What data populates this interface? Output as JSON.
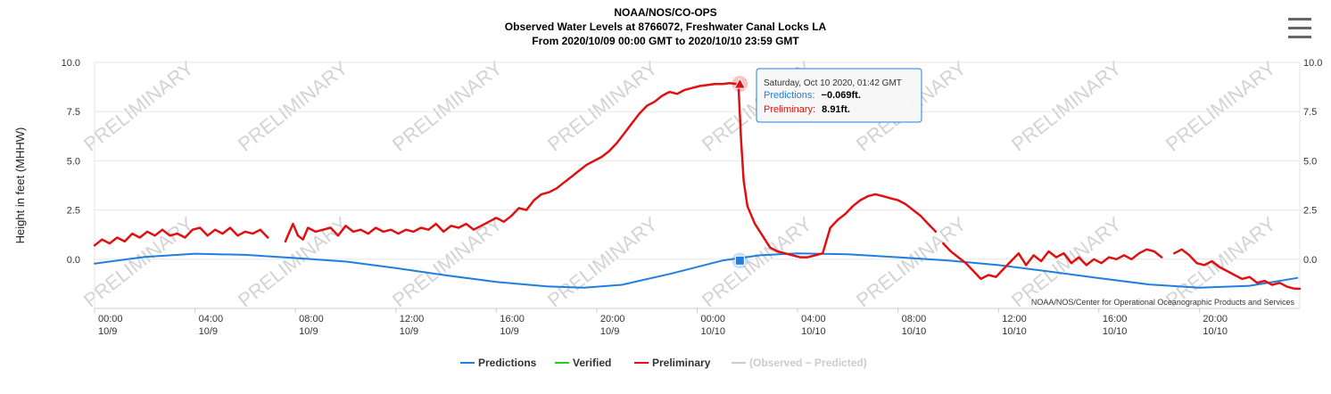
{
  "header": {
    "line1": "NOAA/NOS/CO-OPS",
    "line2": "Observed Water Levels at 8766072, Freshwater Canal Locks LA",
    "line3": "From 2020/10/09 00:00 GMT to 2020/10/10 23:59 GMT"
  },
  "credits": "NOAA/NOS/Center for Operational Oceanographic Products and Services",
  "watermark_text": "PRELIMINARY",
  "menu_icon": "hamburger-menu-icon",
  "tooltip": {
    "time": "Saturday, Oct 10 2020, 01:42 GMT",
    "pred_label": "Predictions:",
    "pred_value": "−0.069ft.",
    "prelim_label": "Preliminary:",
    "prelim_value": "8.91ft."
  },
  "colors": {
    "predictions": "#1f7fe0",
    "verified": "#1fd41f",
    "preliminary": "#e01010",
    "observed_minus_predicted": "#cccccc"
  },
  "chart_data": {
    "type": "line",
    "ylabel": "Height in feet (MHHW)",
    "ylim": [
      -2.5,
      10
    ],
    "yticks": [
      0.0,
      2.5,
      5.0,
      7.5,
      10.0
    ],
    "ytick_labels": [
      "0.0",
      "2.5",
      "5.0",
      "7.5",
      "10.0"
    ],
    "xlim": [
      0,
      48
    ],
    "xticks": [
      {
        "x": 0,
        "time": "00:00",
        "date": "10/9"
      },
      {
        "x": 4,
        "time": "04:00",
        "date": "10/9"
      },
      {
        "x": 8,
        "time": "08:00",
        "date": "10/9"
      },
      {
        "x": 12,
        "time": "12:00",
        "date": "10/9"
      },
      {
        "x": 16,
        "time": "16:00",
        "date": "10/9"
      },
      {
        "x": 20,
        "time": "20:00",
        "date": "10/9"
      },
      {
        "x": 24,
        "time": "00:00",
        "date": "10/10"
      },
      {
        "x": 28,
        "time": "04:00",
        "date": "10/10"
      },
      {
        "x": 32,
        "time": "08:00",
        "date": "10/10"
      },
      {
        "x": 36,
        "time": "12:00",
        "date": "10/10"
      },
      {
        "x": 40,
        "time": "16:00",
        "date": "10/10"
      },
      {
        "x": 44,
        "time": "20:00",
        "date": "10/10"
      }
    ],
    "legend_position": "bottom",
    "series": [
      {
        "name": "Predictions",
        "points": [
          [
            0,
            -0.22
          ],
          [
            2,
            0.12
          ],
          [
            4,
            0.28
          ],
          [
            6,
            0.22
          ],
          [
            8,
            0.06
          ],
          [
            10,
            -0.12
          ],
          [
            12,
            -0.45
          ],
          [
            14,
            -0.82
          ],
          [
            16,
            -1.15
          ],
          [
            18,
            -1.38
          ],
          [
            19.5,
            -1.45
          ],
          [
            21,
            -1.3
          ],
          [
            23,
            -0.72
          ],
          [
            25,
            -0.07
          ],
          [
            26.5,
            0.2
          ],
          [
            28,
            0.3
          ],
          [
            30,
            0.25
          ],
          [
            32,
            0.1
          ],
          [
            34,
            -0.07
          ],
          [
            36,
            -0.3
          ],
          [
            38,
            -0.62
          ],
          [
            40,
            -0.96
          ],
          [
            42,
            -1.28
          ],
          [
            44,
            -1.45
          ],
          [
            46,
            -1.35
          ],
          [
            47.9,
            -0.95
          ]
        ]
      },
      {
        "name": "Verified",
        "points": []
      },
      {
        "name": "Preliminary",
        "segments": [
          [
            [
              0,
              0.7
            ],
            [
              0.3,
              1.0
            ],
            [
              0.6,
              0.8
            ],
            [
              0.9,
              1.1
            ],
            [
              1.2,
              0.9
            ],
            [
              1.5,
              1.3
            ],
            [
              1.8,
              1.1
            ],
            [
              2.1,
              1.4
            ],
            [
              2.4,
              1.2
            ],
            [
              2.7,
              1.5
            ],
            [
              3.0,
              1.2
            ],
            [
              3.3,
              1.3
            ],
            [
              3.6,
              1.1
            ],
            [
              3.9,
              1.5
            ],
            [
              4.2,
              1.6
            ],
            [
              4.5,
              1.2
            ],
            [
              4.8,
              1.5
            ],
            [
              5.1,
              1.3
            ],
            [
              5.4,
              1.6
            ],
            [
              5.7,
              1.2
            ],
            [
              6.0,
              1.4
            ],
            [
              6.3,
              1.3
            ],
            [
              6.6,
              1.5
            ],
            [
              6.9,
              1.1
            ]
          ],
          [
            [
              7.6,
              0.9
            ],
            [
              7.9,
              1.8
            ],
            [
              8.1,
              1.2
            ],
            [
              8.3,
              1.0
            ],
            [
              8.5,
              1.6
            ],
            [
              8.8,
              1.4
            ],
            [
              9.1,
              1.5
            ],
            [
              9.4,
              1.6
            ],
            [
              9.7,
              1.2
            ],
            [
              10.0,
              1.7
            ],
            [
              10.3,
              1.4
            ],
            [
              10.6,
              1.5
            ],
            [
              10.9,
              1.3
            ],
            [
              11.2,
              1.6
            ],
            [
              11.5,
              1.4
            ],
            [
              11.8,
              1.5
            ],
            [
              12.1,
              1.3
            ],
            [
              12.4,
              1.5
            ],
            [
              12.7,
              1.4
            ],
            [
              13.0,
              1.6
            ],
            [
              13.3,
              1.5
            ],
            [
              13.6,
              1.8
            ],
            [
              13.9,
              1.4
            ],
            [
              14.2,
              1.7
            ],
            [
              14.5,
              1.6
            ],
            [
              14.8,
              1.8
            ],
            [
              15.1,
              1.5
            ],
            [
              15.4,
              1.7
            ],
            [
              15.7,
              1.9
            ],
            [
              16.0,
              2.1
            ],
            [
              16.3,
              1.9
            ],
            [
              16.6,
              2.2
            ],
            [
              16.9,
              2.6
            ],
            [
              17.2,
              2.5
            ],
            [
              17.5,
              3.0
            ],
            [
              17.8,
              3.3
            ],
            [
              18.1,
              3.4
            ],
            [
              18.4,
              3.6
            ],
            [
              18.7,
              3.9
            ],
            [
              19.0,
              4.2
            ],
            [
              19.3,
              4.5
            ],
            [
              19.6,
              4.8
            ],
            [
              19.9,
              5.0
            ],
            [
              20.2,
              5.2
            ],
            [
              20.5,
              5.5
            ],
            [
              20.8,
              5.9
            ],
            [
              21.1,
              6.4
            ],
            [
              21.4,
              6.9
            ],
            [
              21.7,
              7.4
            ],
            [
              22.0,
              7.8
            ],
            [
              22.3,
              8.0
            ],
            [
              22.6,
              8.3
            ],
            [
              22.9,
              8.5
            ],
            [
              23.2,
              8.4
            ],
            [
              23.5,
              8.6
            ],
            [
              23.8,
              8.7
            ],
            [
              24.1,
              8.8
            ],
            [
              24.4,
              8.85
            ],
            [
              24.7,
              8.9
            ],
            [
              25.0,
              8.9
            ],
            [
              25.3,
              8.95
            ],
            [
              25.55,
              8.91
            ],
            [
              25.65,
              8.7
            ],
            [
              25.75,
              6.0
            ],
            [
              25.85,
              4.0
            ],
            [
              26.0,
              2.7
            ],
            [
              26.3,
              1.8
            ],
            [
              26.6,
              1.2
            ],
            [
              26.9,
              0.6
            ],
            [
              27.2,
              0.4
            ],
            [
              27.5,
              0.3
            ],
            [
              27.8,
              0.2
            ],
            [
              28.1,
              0.1
            ],
            [
              28.4,
              0.1
            ],
            [
              28.7,
              0.2
            ],
            [
              29.0,
              0.3
            ],
            [
              29.3,
              1.6
            ],
            [
              29.6,
              2.0
            ],
            [
              29.9,
              2.3
            ],
            [
              30.2,
              2.7
            ],
            [
              30.5,
              3.0
            ],
            [
              30.8,
              3.2
            ],
            [
              31.1,
              3.3
            ],
            [
              31.4,
              3.2
            ],
            [
              31.7,
              3.1
            ],
            [
              32.0,
              3.0
            ],
            [
              32.3,
              2.8
            ],
            [
              32.6,
              2.5
            ],
            [
              32.9,
              2.2
            ],
            [
              33.2,
              1.8
            ],
            [
              33.5,
              1.4
            ]
          ],
          [
            [
              33.8,
              0.8
            ],
            [
              34.1,
              0.4
            ],
            [
              34.4,
              0.1
            ],
            [
              34.7,
              -0.2
            ],
            [
              35.0,
              -0.6
            ],
            [
              35.3,
              -1.0
            ],
            [
              35.6,
              -0.8
            ],
            [
              35.9,
              -0.9
            ],
            [
              36.2,
              -0.5
            ],
            [
              36.5,
              -0.1
            ],
            [
              36.8,
              0.3
            ],
            [
              37.1,
              -0.3
            ],
            [
              37.4,
              0.2
            ],
            [
              37.7,
              -0.1
            ],
            [
              38.0,
              0.4
            ],
            [
              38.3,
              0.1
            ],
            [
              38.6,
              0.3
            ],
            [
              38.9,
              -0.2
            ],
            [
              39.2,
              0.1
            ],
            [
              39.5,
              -0.3
            ],
            [
              39.8,
              0.0
            ],
            [
              40.1,
              -0.2
            ],
            [
              40.4,
              0.1
            ],
            [
              40.7,
              0.0
            ],
            [
              41.0,
              0.2
            ],
            [
              41.3,
              0.0
            ],
            [
              41.6,
              0.3
            ],
            [
              41.9,
              0.5
            ],
            [
              42.2,
              0.4
            ],
            [
              42.5,
              0.1
            ]
          ],
          [
            [
              43.0,
              0.3
            ],
            [
              43.3,
              0.5
            ],
            [
              43.6,
              0.2
            ],
            [
              43.9,
              -0.2
            ],
            [
              44.2,
              -0.3
            ],
            [
              44.5,
              -0.1
            ],
            [
              44.8,
              -0.4
            ],
            [
              45.1,
              -0.6
            ],
            [
              45.4,
              -0.8
            ],
            [
              45.7,
              -1.0
            ],
            [
              46.0,
              -0.9
            ],
            [
              46.3,
              -1.2
            ],
            [
              46.6,
              -1.1
            ],
            [
              46.9,
              -1.3
            ],
            [
              47.2,
              -1.2
            ],
            [
              47.5,
              -1.4
            ],
            [
              47.8,
              -1.5
            ],
            [
              48.0,
              -1.5
            ]
          ]
        ]
      },
      {
        "name": "(Observed − Predicted)",
        "points": []
      }
    ],
    "highlight": {
      "x": 25.7,
      "prediction": -0.069,
      "preliminary": 8.91
    }
  }
}
